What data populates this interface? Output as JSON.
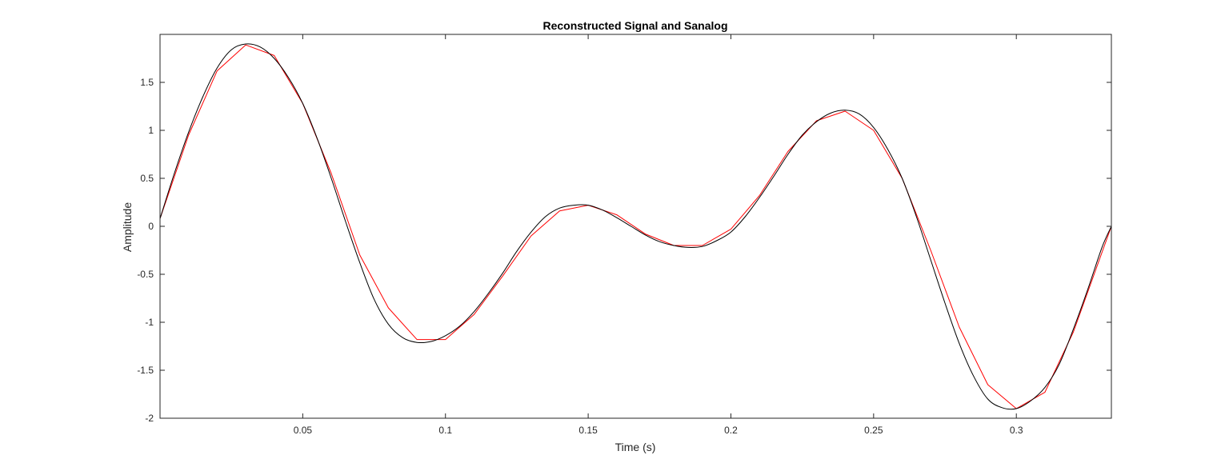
{
  "chart_data": {
    "type": "line",
    "title": "Reconstructed Signal and Sanalog",
    "xlabel": "Time (s)",
    "ylabel": "Amplitude",
    "xlim": [
      0,
      0.3333
    ],
    "ylim": [
      -2,
      2
    ],
    "xticks": [
      0.05,
      0.1,
      0.15,
      0.2,
      0.25,
      0.3
    ],
    "xtick_labels": [
      "0.05",
      "0.1",
      "0.15",
      "0.2",
      "0.25",
      "0.3"
    ],
    "yticks": [
      -2,
      -1.5,
      -1,
      -0.5,
      0,
      0.5,
      1,
      1.5
    ],
    "ytick_labels": [
      "-2",
      "-1.5",
      "-1",
      "-0.5",
      "0",
      "0.5",
      "1",
      "1.5"
    ],
    "grid": false,
    "series": [
      {
        "color": "#000000",
        "style": "smooth",
        "x": [
          0,
          0.005,
          0.01,
          0.015,
          0.02,
          0.025,
          0.03,
          0.035,
          0.04,
          0.045,
          0.05,
          0.055,
          0.06,
          0.065,
          0.07,
          0.075,
          0.08,
          0.085,
          0.09,
          0.095,
          0.1,
          0.105,
          0.11,
          0.115,
          0.12,
          0.125,
          0.13,
          0.135,
          0.14,
          0.145,
          0.15,
          0.155,
          0.16,
          0.165,
          0.17,
          0.175,
          0.18,
          0.185,
          0.19,
          0.195,
          0.2,
          0.205,
          0.21,
          0.215,
          0.22,
          0.225,
          0.23,
          0.235,
          0.24,
          0.245,
          0.25,
          0.255,
          0.26,
          0.265,
          0.27,
          0.275,
          0.28,
          0.285,
          0.29,
          0.295,
          0.3,
          0.305,
          0.31,
          0.315,
          0.32,
          0.325,
          0.33,
          0.3333
        ],
        "y": [
          0.08,
          0.55,
          0.98,
          1.35,
          1.65,
          1.84,
          1.9,
          1.87,
          1.75,
          1.55,
          1.28,
          0.92,
          0.5,
          0.05,
          -0.38,
          -0.76,
          -1.02,
          -1.16,
          -1.21,
          -1.2,
          -1.14,
          -1.04,
          -0.89,
          -0.7,
          -0.49,
          -0.26,
          -0.06,
          0.1,
          0.19,
          0.22,
          0.22,
          0.17,
          0.09,
          0.0,
          -0.09,
          -0.16,
          -0.2,
          -0.22,
          -0.21,
          -0.15,
          -0.06,
          0.1,
          0.3,
          0.52,
          0.75,
          0.95,
          1.09,
          1.18,
          1.21,
          1.17,
          1.03,
          0.8,
          0.5,
          0.1,
          -0.35,
          -0.8,
          -1.22,
          -1.56,
          -1.8,
          -1.89,
          -1.9,
          -1.82,
          -1.68,
          -1.44,
          -1.07,
          -0.66,
          -0.22,
          0.0
        ]
      },
      {
        "color": "#ff0000",
        "style": "piecewise",
        "x": [
          0,
          0.01,
          0.02,
          0.03,
          0.04,
          0.05,
          0.06,
          0.07,
          0.08,
          0.09,
          0.1,
          0.11,
          0.12,
          0.13,
          0.14,
          0.15,
          0.16,
          0.17,
          0.18,
          0.19,
          0.2,
          0.21,
          0.22,
          0.23,
          0.24,
          0.25,
          0.26,
          0.27,
          0.28,
          0.29,
          0.3,
          0.31,
          0.32,
          0.3333
        ],
        "y": [
          0.08,
          0.95,
          1.62,
          1.89,
          1.78,
          1.28,
          0.55,
          -0.3,
          -0.85,
          -1.18,
          -1.18,
          -0.92,
          -0.52,
          -0.1,
          0.16,
          0.22,
          0.12,
          -0.08,
          -0.2,
          -0.2,
          -0.03,
          0.32,
          0.78,
          1.1,
          1.2,
          1.0,
          0.5,
          -0.25,
          -1.05,
          -1.65,
          -1.9,
          -1.73,
          -1.1,
          0.0
        ]
      }
    ]
  }
}
